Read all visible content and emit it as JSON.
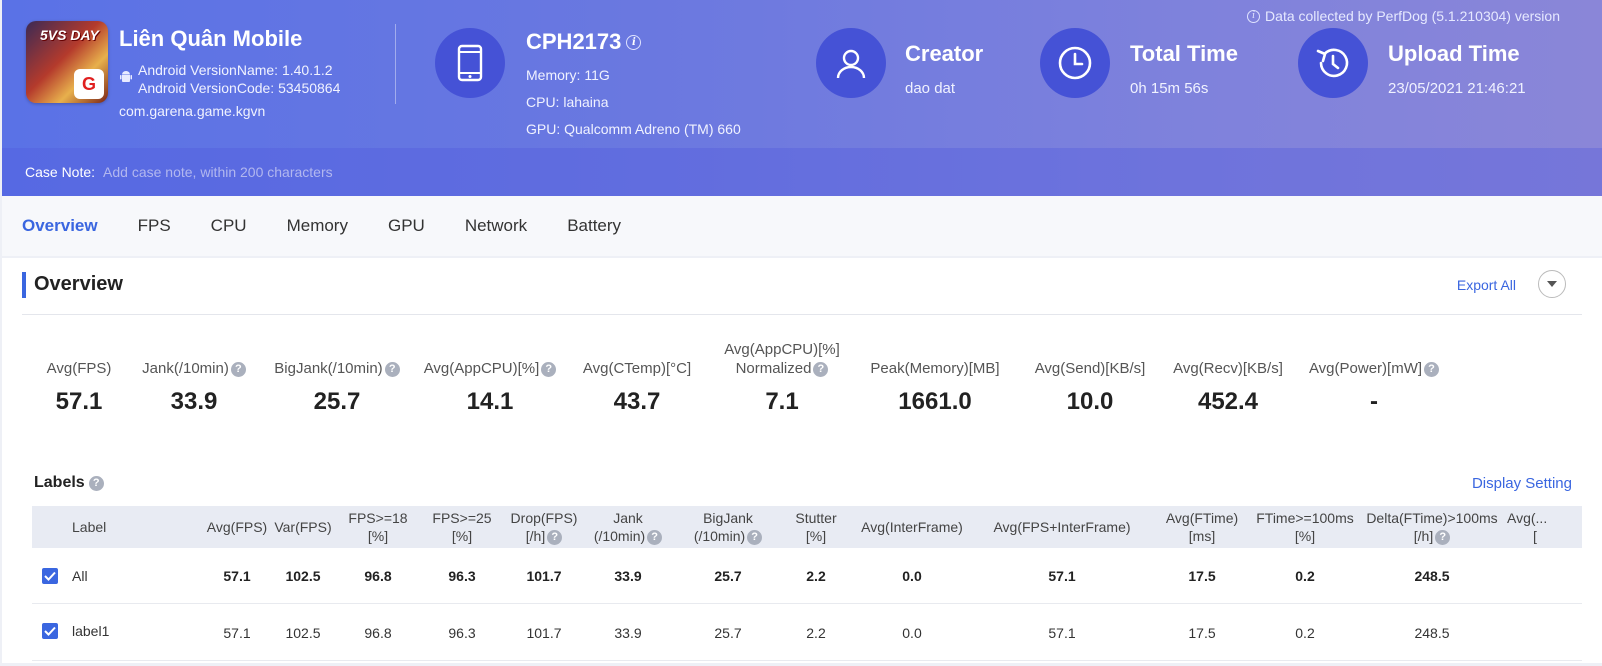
{
  "header": {
    "collected": "Data collected by PerfDog (5.1.210304) version",
    "app": {
      "name": "Liên Quân Mobile",
      "version_name": "Android VersionName: 1.40.1.2",
      "version_code": "Android VersionCode: 53450864",
      "package": "com.garena.game.kgvn",
      "icon_text": "5VS DAY"
    },
    "device": {
      "name": "CPH2173",
      "memory": "Memory: 11G",
      "cpu": "CPU: lahaina",
      "gpu": "GPU: Qualcomm Adreno (TM) 660"
    },
    "creator": {
      "title": "Creator",
      "value": "dao dat"
    },
    "total_time": {
      "title": "Total Time",
      "value": "0h 15m 56s"
    },
    "upload_time": {
      "title": "Upload Time",
      "value": "23/05/2021 21:46:21"
    },
    "case_note": {
      "label": "Case Note:",
      "placeholder": "Add case note, within 200 characters"
    }
  },
  "tabs": [
    "Overview",
    "FPS",
    "CPU",
    "Memory",
    "GPU",
    "Network",
    "Battery"
  ],
  "overview": {
    "title": "Overview",
    "export": "Export All",
    "stats": [
      {
        "label": "Avg(FPS)",
        "value": "57.1"
      },
      {
        "label": "Jank(/10min)",
        "value": "33.9"
      },
      {
        "label": "BigJank(/10min)",
        "value": "25.7"
      },
      {
        "label": "Avg(AppCPU)[%]",
        "value": "14.1"
      },
      {
        "label": "Avg(CTemp)[°C]",
        "value": "43.7"
      },
      {
        "label1": "Avg(AppCPU)[%]",
        "label": "Normalized",
        "value": "7.1"
      },
      {
        "label": "Peak(Memory)[MB]",
        "value": "1661.0"
      },
      {
        "label": "Avg(Send)[KB/s]",
        "value": "10.0"
      },
      {
        "label": "Avg(Recv)[KB/s]",
        "value": "452.4"
      },
      {
        "label": "Avg(Power)[mW]",
        "value": "-"
      }
    ]
  },
  "labels": {
    "title": "Labels",
    "display_setting": "Display Setting",
    "columns": [
      {
        "l1": "Label",
        "l2": ""
      },
      {
        "l1": "Avg(FPS)",
        "l2": ""
      },
      {
        "l1": "Var(FPS)",
        "l2": ""
      },
      {
        "l1": "FPS>=18",
        "l2": "[%]"
      },
      {
        "l1": "FPS>=25",
        "l2": "[%]"
      },
      {
        "l1": "Drop(FPS)",
        "l2": "[/h]"
      },
      {
        "l1": "Jank",
        "l2": "(/10min)"
      },
      {
        "l1": "BigJank",
        "l2": "(/10min)"
      },
      {
        "l1": "Stutter",
        "l2": "[%]"
      },
      {
        "l1": "Avg(InterFrame)",
        "l2": ""
      },
      {
        "l1": "Avg(FPS+InterFrame)",
        "l2": ""
      },
      {
        "l1": "Avg(FTime)",
        "l2": "[ms]"
      },
      {
        "l1": "FTime>=100ms",
        "l2": "[%]"
      },
      {
        "l1": "Delta(FTime)>100ms",
        "l2": "[/h]"
      },
      {
        "l1": "Avg(...",
        "l2": "["
      }
    ],
    "rows": [
      {
        "label": "All",
        "values": [
          "57.1",
          "102.5",
          "96.8",
          "96.3",
          "101.7",
          "33.9",
          "25.7",
          "2.2",
          "0.0",
          "57.1",
          "17.5",
          "0.2",
          "248.5"
        ]
      },
      {
        "label": "label1",
        "values": [
          "57.1",
          "102.5",
          "96.8",
          "96.3",
          "101.7",
          "33.9",
          "25.7",
          "2.2",
          "0.0",
          "57.1",
          "17.5",
          "0.2",
          "248.5"
        ]
      }
    ]
  }
}
